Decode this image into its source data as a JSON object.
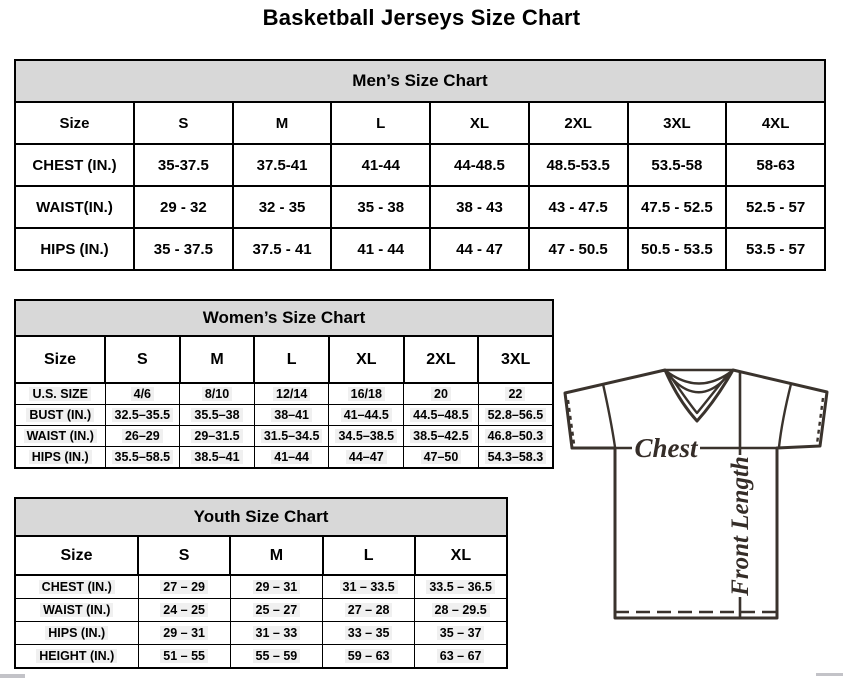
{
  "page": {
    "title": "Basketball Jerseys Size Chart"
  },
  "mens": {
    "title": "Men’s Size Chart",
    "columns": [
      "Size",
      "S",
      "M",
      "L",
      "XL",
      "2XL",
      "3XL",
      "4XL"
    ],
    "rows": [
      {
        "label": "CHEST (IN.)",
        "values": [
          "35-37.5",
          "37.5-41",
          "41-44",
          "44-48.5",
          "48.5-53.5",
          "53.5-58",
          "58-63"
        ]
      },
      {
        "label": "WAIST(IN.)",
        "values": [
          "29 - 32",
          "32 - 35",
          "35 - 38",
          "38 - 43",
          "43 - 47.5",
          "47.5 - 52.5",
          "52.5 - 57"
        ]
      },
      {
        "label": "HIPS (IN.)",
        "values": [
          "35 - 37.5",
          "37.5 - 41",
          "41 - 44",
          "44 - 47",
          "47 - 50.5",
          "50.5 - 53.5",
          "53.5 - 57"
        ]
      }
    ]
  },
  "womens": {
    "title": "Women’s Size Chart",
    "columns": [
      "Size",
      "S",
      "M",
      "L",
      "XL",
      "2XL",
      "3XL"
    ],
    "rows": [
      {
        "label": "U.S. SIZE",
        "values": [
          "4/6",
          "8/10",
          "12/14",
          "16/18",
          "20",
          "22"
        ]
      },
      {
        "label": "BUST (IN.)",
        "values": [
          "32.5–35.5",
          "35.5–38",
          "38–41",
          "41–44.5",
          "44.5–48.5",
          "52.8–56.5"
        ]
      },
      {
        "label": "WAIST (IN.)",
        "values": [
          "26–29",
          "29–31.5",
          "31.5–34.5",
          "34.5–38.5",
          "38.5–42.5",
          "46.8–50.3"
        ]
      },
      {
        "label": "HIPS (IN.)",
        "values": [
          "35.5–58.5",
          "38.5–41",
          "41–44",
          "44–47",
          "47–50",
          "54.3–58.3"
        ]
      }
    ]
  },
  "youth": {
    "title": "Youth Size Chart",
    "columns": [
      "Size",
      "S",
      "M",
      "L",
      "XL"
    ],
    "rows": [
      {
        "label": "CHEST (IN.)",
        "values": [
          "27 – 29",
          "29 – 31",
          "31 – 33.5",
          "33.5 – 36.5"
        ]
      },
      {
        "label": "WAIST (IN.)",
        "values": [
          "24 – 25",
          "25 – 27",
          "27 – 28",
          "28 – 29.5"
        ]
      },
      {
        "label": "HIPS (IN.)",
        "values": [
          "29 – 31",
          "31 – 33",
          "33 – 35",
          "35 – 37"
        ]
      },
      {
        "label": "HEIGHT (IN.)",
        "values": [
          "51 – 55",
          "55 – 59",
          "59 – 63",
          "63 – 67"
        ]
      }
    ]
  },
  "diagram": {
    "chest_label": "Chest",
    "front_length_label": "Front Length"
  },
  "colors": {
    "table_header_bg": "#d8d8d8",
    "table_border": "#000000",
    "jersey_line": "#3a332d"
  }
}
